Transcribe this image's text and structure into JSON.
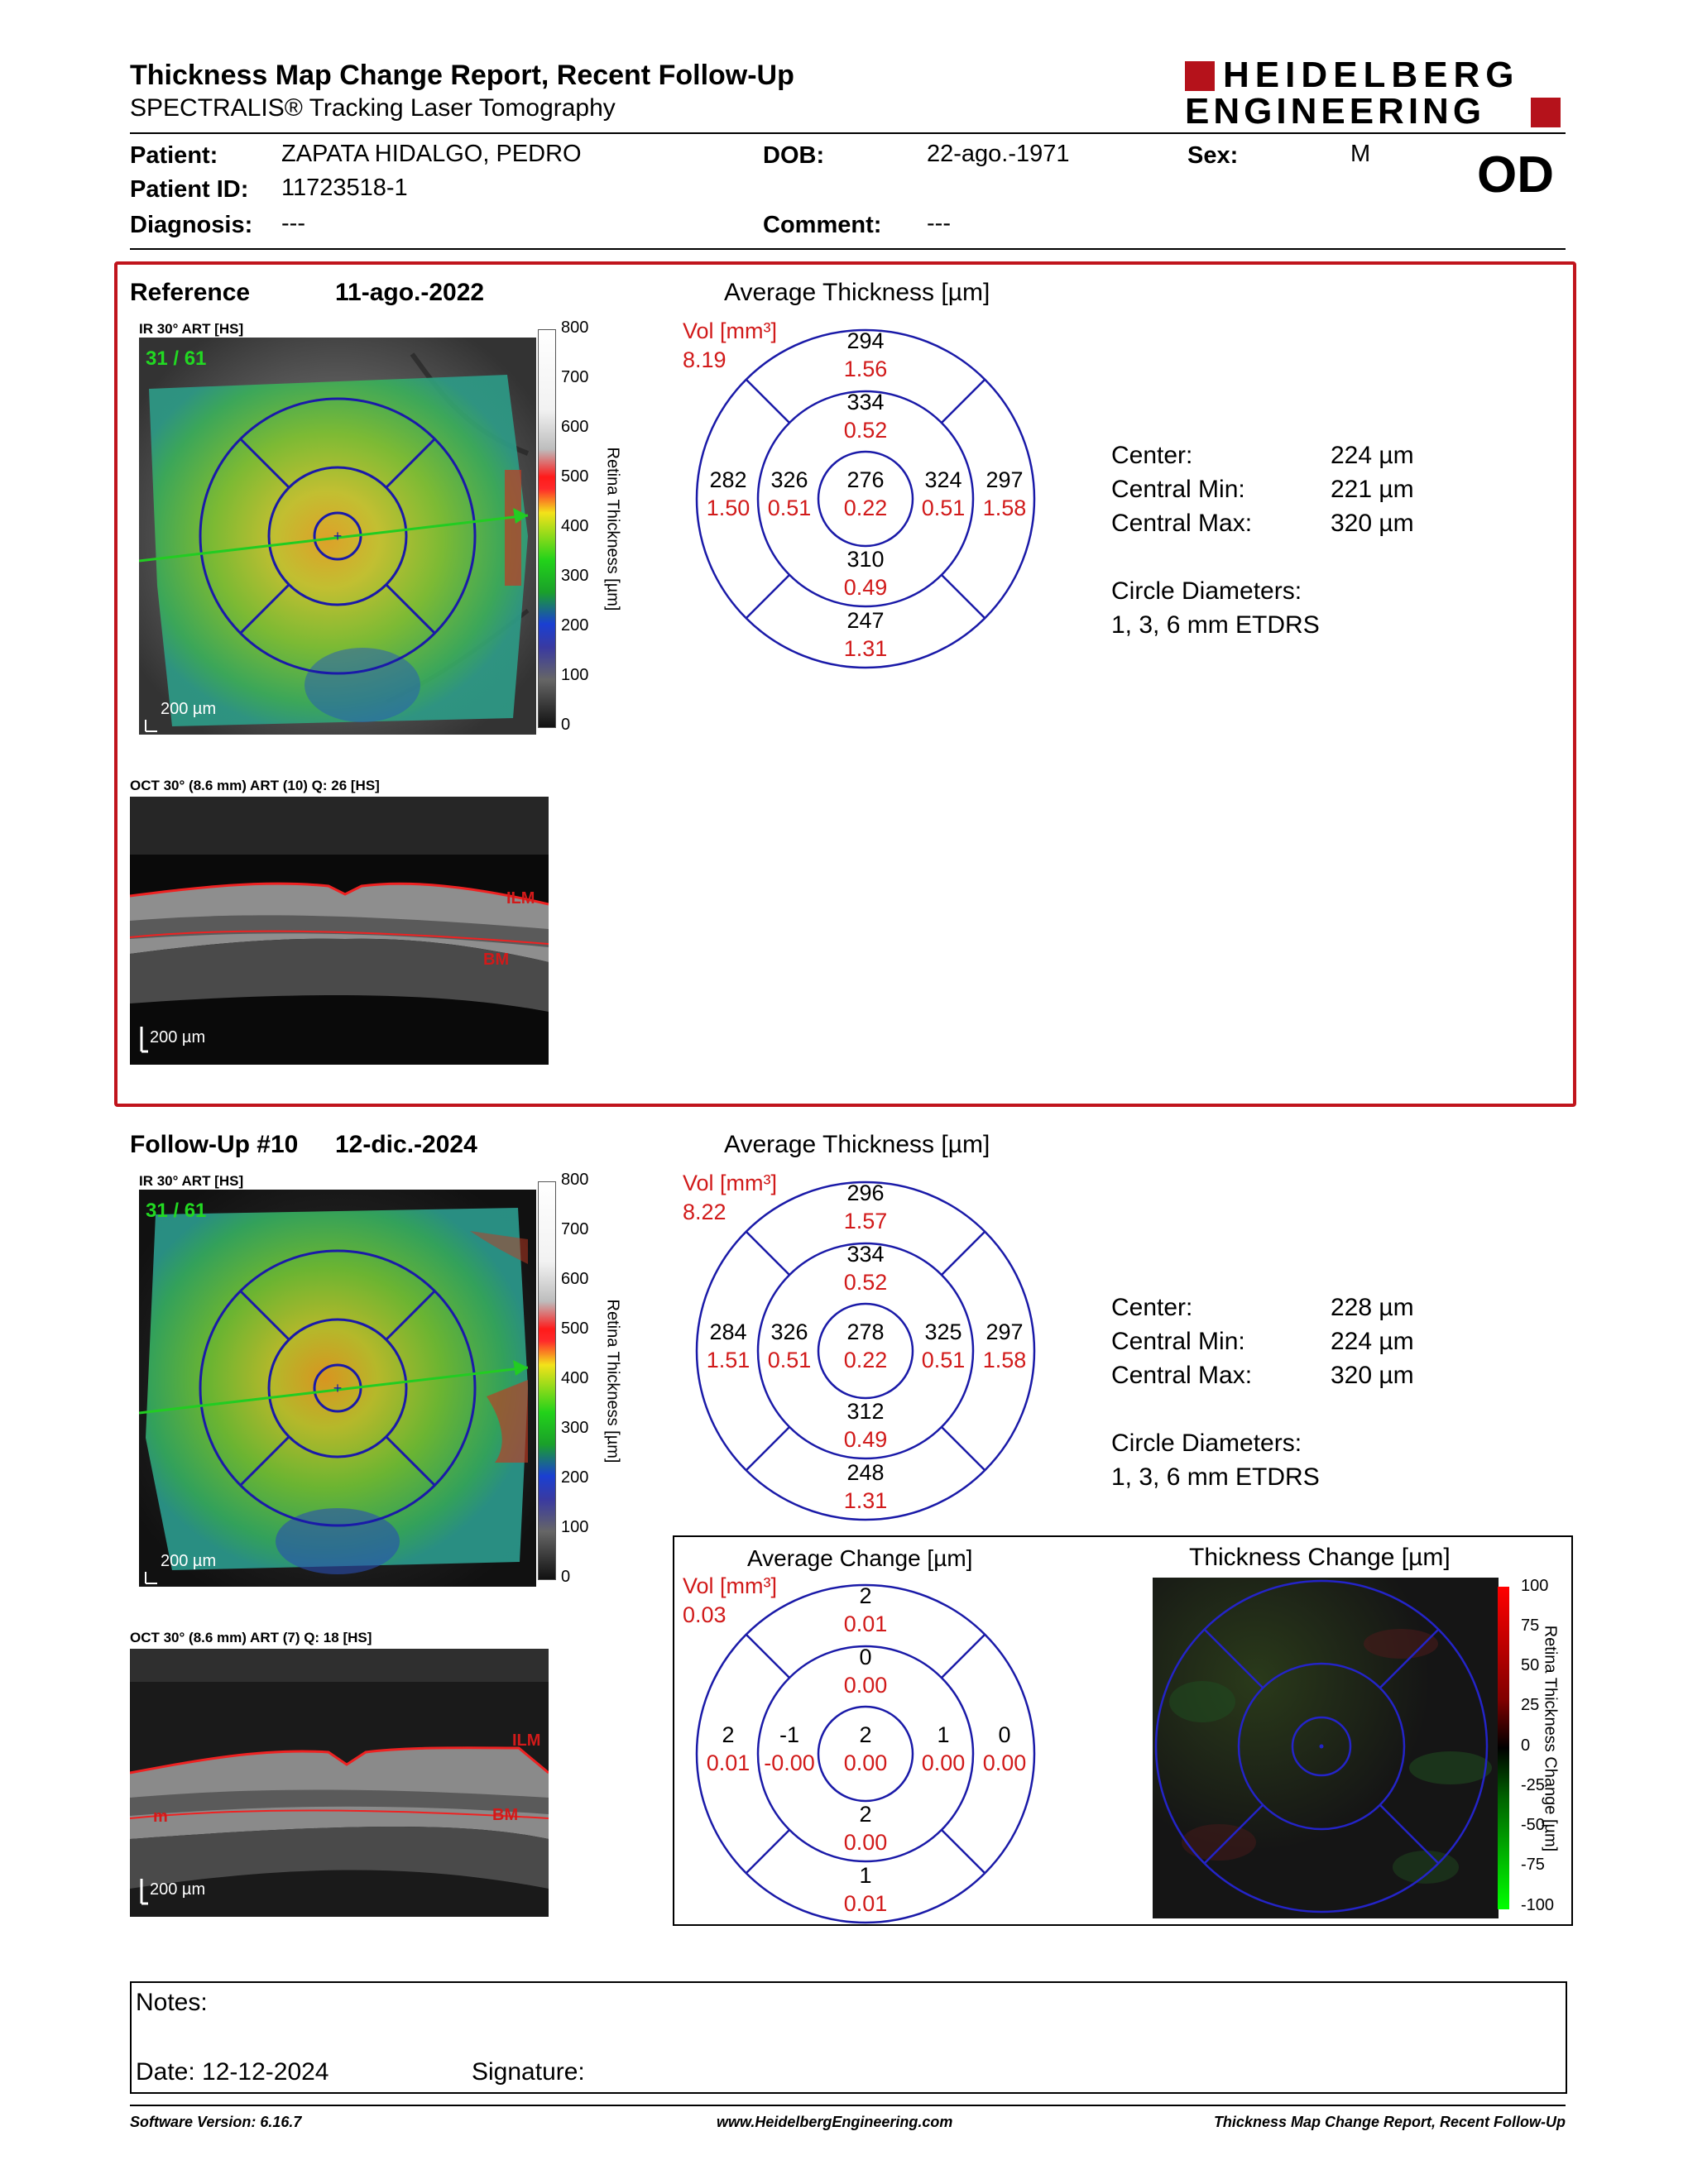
{
  "header": {
    "title": "Thickness Map Change Report, Recent Follow-Up",
    "subtitle": "SPECTRALIS® Tracking Laser Tomography",
    "logo_line1": "HEIDELBERG",
    "logo_line2": "ENGINEERING",
    "eye": "OD"
  },
  "patient": {
    "patient_label": "Patient:",
    "patient_value": "ZAPATA HIDALGO, PEDRO",
    "id_label": "Patient ID:",
    "id_value": "11723518-1",
    "diagnosis_label": "Diagnosis:",
    "diagnosis_value": "---",
    "dob_label": "DOB:",
    "dob_value": "22-ago.-1971",
    "comment_label": "Comment:",
    "comment_value": "---",
    "sex_label": "Sex:",
    "sex_value": "M"
  },
  "reference": {
    "label": "Reference",
    "date": "11-ago.-2022",
    "ir_caption": "IR 30° ART [HS]",
    "frame": "31 / 61",
    "scale": "200 µm",
    "oct_caption": "OCT 30° (8.6 mm) ART (10) Q: 26 [HS]",
    "ilm": "ILM",
    "bm": "BM",
    "avg_title": "Average Thickness [µm]",
    "vol_label": "Vol [mm³]",
    "vol_value": "8.19",
    "grid": {
      "top_outer": [
        "294",
        "1.56"
      ],
      "top_inner": [
        "334",
        "0.52"
      ],
      "left_outer": [
        "282",
        "1.50"
      ],
      "left_inner": [
        "326",
        "0.51"
      ],
      "center": [
        "276",
        "0.22"
      ],
      "right_inner": [
        "324",
        "0.51"
      ],
      "right_outer": [
        "297",
        "1.58"
      ],
      "bottom_inner": [
        "310",
        "0.49"
      ],
      "bottom_outer": [
        "247",
        "1.31"
      ]
    },
    "stats": {
      "center_label": "Center:",
      "center_value": "224 µm",
      "min_label": "Central Min:",
      "min_value": "221 µm",
      "max_label": "Central Max:",
      "max_value": "320 µm",
      "circ_label": "Circle Diameters:",
      "circ_value": "1, 3, 6 mm ETDRS"
    }
  },
  "followup": {
    "label": "Follow-Up #10",
    "date": "12-dic.-2024",
    "ir_caption": "IR 30° ART [HS]",
    "frame": "31 / 61",
    "scale": "200 µm",
    "oct_caption": "OCT 30° (8.6 mm) ART (7) Q: 18 [HS]",
    "ilm": "ILM",
    "bm": "BM",
    "m": "m",
    "avg_title": "Average Thickness [µm]",
    "vol_label": "Vol [mm³]",
    "vol_value": "8.22",
    "grid": {
      "top_outer": [
        "296",
        "1.57"
      ],
      "top_inner": [
        "334",
        "0.52"
      ],
      "left_outer": [
        "284",
        "1.51"
      ],
      "left_inner": [
        "326",
        "0.51"
      ],
      "center": [
        "278",
        "0.22"
      ],
      "right_inner": [
        "325",
        "0.51"
      ],
      "right_outer": [
        "297",
        "1.58"
      ],
      "bottom_inner": [
        "312",
        "0.49"
      ],
      "bottom_outer": [
        "248",
        "1.31"
      ]
    },
    "stats": {
      "center_label": "Center:",
      "center_value": "228 µm",
      "min_label": "Central Min:",
      "min_value": "224 µm",
      "max_label": "Central Max:",
      "max_value": "320 µm",
      "circ_label": "Circle Diameters:",
      "circ_value": "1, 3, 6 mm ETDRS"
    }
  },
  "change": {
    "avg_title": "Average Change [µm]",
    "vol_label": "Vol [mm³]",
    "vol_value": "0.03",
    "grid": {
      "top_outer": [
        "2",
        "0.01"
      ],
      "top_inner": [
        "0",
        "0.00"
      ],
      "left_outer": [
        "2",
        "0.01"
      ],
      "left_inner": [
        "-1",
        "-0.00"
      ],
      "center": [
        "2",
        "0.00"
      ],
      "right_inner": [
        "1",
        "0.00"
      ],
      "right_outer": [
        "0",
        "0.00"
      ],
      "bottom_inner": [
        "2",
        "0.00"
      ],
      "bottom_outer": [
        "1",
        "0.01"
      ]
    },
    "map_title": "Thickness Change [µm]",
    "map_axis": "Retina Thickness Change [µm]",
    "map_ticks": [
      "100",
      "75",
      "50",
      "25",
      "0",
      "-25",
      "-50",
      "-75",
      "-100"
    ]
  },
  "thickness_scale": {
    "axis": "Retina Thickness [µm]",
    "ticks": [
      "800",
      "700",
      "600",
      "500",
      "400",
      "300",
      "200",
      "100",
      "0"
    ]
  },
  "notes": {
    "notes_label": "Notes:",
    "date_label": "Date: 12-12-2024",
    "signature_label": "Signature:"
  },
  "footer": {
    "software": "Software Version: 6.16.7",
    "website": "www.HeidelbergEngineering.com",
    "report": "Thickness Map Change Report, Recent Follow-Up"
  },
  "colors": {
    "frame_red": "#c0141c",
    "value_red": "#d11a1a",
    "grid_blue": "#1a1aa8",
    "logo_red": "#b5121b"
  }
}
